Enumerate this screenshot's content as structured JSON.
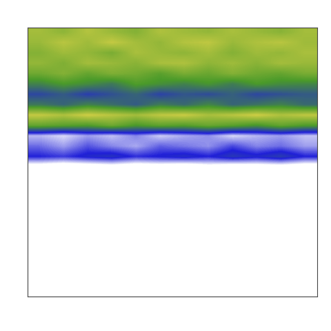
{
  "chart_data": {
    "type": "heatmap",
    "tick_labels": false,
    "cells": [
      [
        0.72,
        0.68,
        0.75,
        0.7,
        0.66,
        0.74,
        0.71,
        0.69,
        0.73,
        0.7,
        0.67,
        0.72
      ],
      [
        0.7,
        0.76,
        0.71,
        0.78,
        0.72,
        0.69,
        0.75,
        0.77,
        0.7,
        0.74,
        0.76,
        0.71
      ],
      [
        0.66,
        0.71,
        0.69,
        0.64,
        0.73,
        0.7,
        0.68,
        0.72,
        0.66,
        0.71,
        0.69,
        0.73
      ],
      [
        0.69,
        0.65,
        0.72,
        0.7,
        0.67,
        0.73,
        0.74,
        0.68,
        0.71,
        0.67,
        0.72,
        0.7
      ],
      [
        0.62,
        0.66,
        0.6,
        0.65,
        0.63,
        0.58,
        0.64,
        0.61,
        0.66,
        0.62,
        0.6,
        0.64
      ],
      [
        0.5,
        0.55,
        0.52,
        0.48,
        0.56,
        0.53,
        0.5,
        0.54,
        0.49,
        0.55,
        0.52,
        0.51
      ],
      [
        0.38,
        0.42,
        0.36,
        0.4,
        0.44,
        0.37,
        0.41,
        0.39,
        0.43,
        0.38,
        0.4,
        0.42
      ],
      [
        0.48,
        0.44,
        0.5,
        0.46,
        0.42,
        0.49,
        0.45,
        0.51,
        0.44,
        0.47,
        0.5,
        0.45
      ],
      [
        0.78,
        0.74,
        0.8,
        0.76,
        0.72,
        0.77,
        0.79,
        0.73,
        0.76,
        0.8,
        0.74,
        0.77
      ],
      [
        0.6,
        0.58,
        0.56,
        0.62,
        0.55,
        0.59,
        0.57,
        0.61,
        0.58,
        0.54,
        0.6,
        0.56
      ],
      [
        0.18,
        0.15,
        0.2,
        0.17,
        0.22,
        0.16,
        0.19,
        0.21,
        0.15,
        0.18,
        0.2,
        0.17
      ],
      [
        0.24,
        0.2,
        0.26,
        0.22,
        0.19,
        0.25,
        0.23,
        0.21,
        0.27,
        0.22,
        0.24,
        0.2
      ],
      [
        0.3,
        0.28,
        0.32,
        0.34,
        0.29,
        0.31,
        0.33,
        0.3,
        0.35,
        0.32,
        0.36,
        0.3
      ],
      [
        0.06,
        0.04,
        0.05,
        0.07,
        0.05,
        0.06,
        0.04,
        0.08,
        0.05,
        0.06,
        0.07,
        0.05
      ],
      [
        0,
        0,
        0,
        0,
        0,
        0,
        0,
        0,
        0,
        0,
        0,
        0
      ],
      [
        0.05,
        0,
        0,
        0,
        0.08,
        0.07,
        0.06,
        0.05,
        0.06,
        0.05,
        0.04,
        0
      ],
      [
        0,
        0,
        0,
        0,
        0,
        0,
        0,
        0,
        0,
        0,
        0,
        0
      ],
      [
        0,
        0,
        0,
        0,
        0,
        0,
        0,
        0,
        0,
        0,
        0,
        0
      ],
      [
        0,
        0,
        0,
        0,
        0,
        0,
        0,
        0,
        0,
        0,
        0,
        0
      ],
      [
        0,
        0,
        0,
        0,
        0,
        0,
        0,
        0,
        0.05,
        0,
        0,
        0
      ],
      [
        0,
        0,
        0,
        0,
        0,
        0,
        0,
        0,
        0,
        0,
        0,
        0
      ],
      [
        0,
        0,
        0,
        0,
        0,
        0,
        0,
        0,
        0,
        0,
        0,
        0
      ],
      [
        0,
        0,
        0,
        0,
        0,
        0,
        0,
        0,
        0,
        0,
        0,
        0
      ],
      [
        0,
        0,
        0,
        0,
        0,
        0,
        0,
        0,
        0,
        0,
        0,
        0
      ],
      [
        0,
        0,
        0,
        0,
        0,
        0,
        0,
        0,
        0,
        0,
        0,
        0
      ],
      [
        0,
        0,
        0,
        0,
        0,
        0,
        0,
        0,
        0,
        0,
        0,
        0
      ]
    ]
  }
}
